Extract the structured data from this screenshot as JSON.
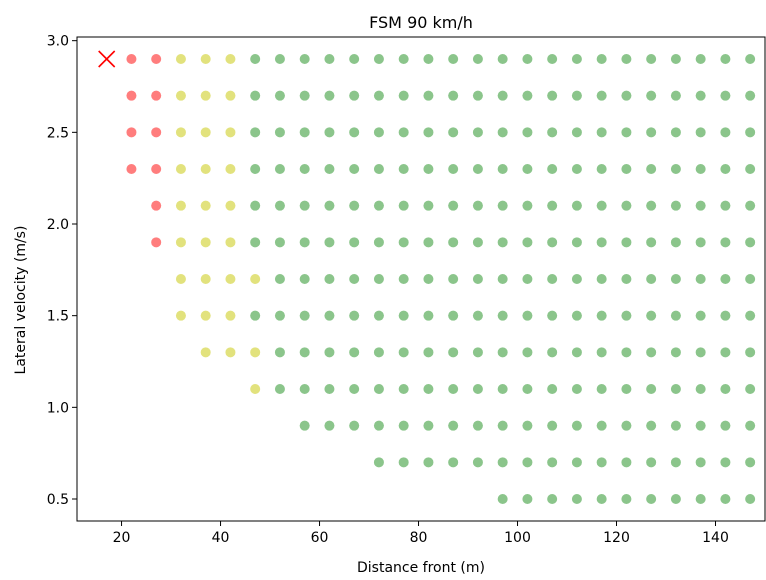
{
  "chart_data": {
    "type": "scatter",
    "title": "FSM 90 km/h",
    "xlabel": "Distance front (m)",
    "ylabel": "Lateral velocity (m/s)",
    "xlim": [
      11,
      150
    ],
    "ylim": [
      0.38,
      3.02
    ],
    "x_ticks": [
      20,
      40,
      60,
      80,
      100,
      120,
      140
    ],
    "y_ticks": [
      0.5,
      1.0,
      1.5,
      2.0,
      2.5,
      3.0
    ],
    "x_tick_labels": [
      "20",
      "40",
      "60",
      "80",
      "100",
      "120",
      "140"
    ],
    "y_tick_labels": [
      "0.5",
      "1.0",
      "1.5",
      "2.0",
      "2.5",
      "3.0"
    ],
    "grid": false,
    "x_values": [
      22,
      27,
      32,
      37,
      42,
      47,
      52,
      57,
      62,
      67,
      72,
      77,
      82,
      87,
      92,
      97,
      102,
      107,
      112,
      117,
      122,
      127,
      132,
      137,
      142,
      147
    ],
    "colors": {
      "red": "#ff6666",
      "yellow": "#dddd66",
      "green": "#77bb77",
      "marker": "#ff0000"
    },
    "rows": [
      {
        "y": 2.9,
        "red": [
          22,
          27
        ],
        "yellow_to": 42
      },
      {
        "y": 2.7,
        "red": [
          22,
          27
        ],
        "yellow_to": 42
      },
      {
        "y": 2.5,
        "red": [
          22,
          27
        ],
        "yellow_to": 42
      },
      {
        "y": 2.3,
        "red": [
          22,
          27
        ],
        "yellow_to": 42
      },
      {
        "y": 2.1,
        "red": [
          27
        ],
        "yellow_to": 42
      },
      {
        "y": 1.9,
        "red": [
          27
        ],
        "yellow_to": 42
      },
      {
        "y": 1.7,
        "red": [],
        "x_start": 32,
        "yellow_to": 47
      },
      {
        "y": 1.5,
        "red": [],
        "x_start": 32,
        "yellow_to": 42
      },
      {
        "y": 1.3,
        "red": [],
        "x_start": 37,
        "yellow_to": 47
      },
      {
        "y": 1.1,
        "red": [],
        "x_start": 47,
        "yellow_to": 47
      },
      {
        "y": 0.9,
        "red": [],
        "x_start": 57,
        "yellow_to": 0
      },
      {
        "y": 0.7,
        "red": [],
        "x_start": 72,
        "yellow_to": 0
      },
      {
        "y": 0.5,
        "red": [],
        "x_start": 97,
        "yellow_to": 0
      }
    ],
    "x_marker": {
      "x": 17,
      "y": 2.9
    }
  }
}
